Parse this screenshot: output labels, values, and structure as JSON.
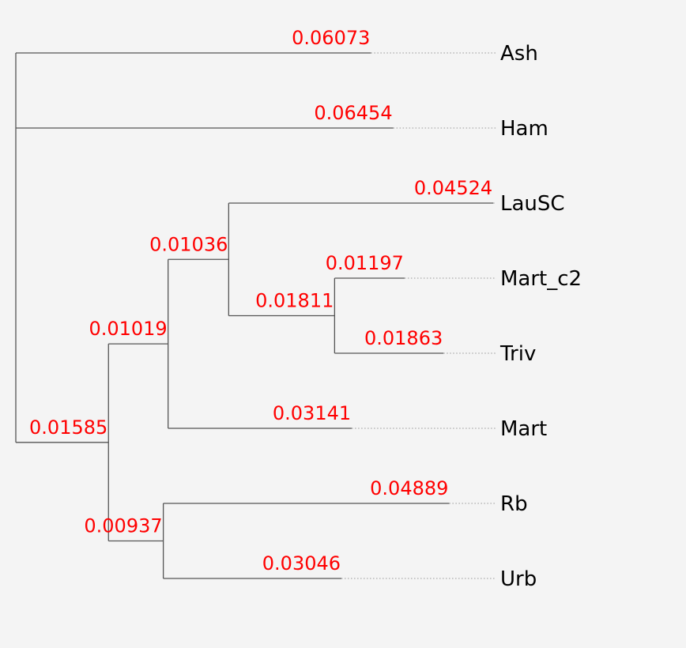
{
  "tree": {
    "name": "root",
    "children": [
      {
        "name": "Ash",
        "length": "0.06073"
      },
      {
        "name": "Ham",
        "length": "0.06454"
      },
      {
        "name": "n1",
        "length": "0.01585",
        "children": [
          {
            "name": "n2",
            "length": "0.01019",
            "children": [
              {
                "name": "n3",
                "length": "0.01036",
                "children": [
                  {
                    "name": "LauSC",
                    "length": "0.04524"
                  },
                  {
                    "name": "n4",
                    "length": "0.01811",
                    "children": [
                      {
                        "name": "Mart_c2",
                        "length": "0.01197"
                      },
                      {
                        "name": "Triv",
                        "length": "0.01863"
                      }
                    ]
                  }
                ]
              },
              {
                "name": "Mart",
                "length": "0.03141"
              }
            ]
          },
          {
            "name": "n5",
            "length": "0.00937",
            "children": [
              {
                "name": "Rb",
                "length": "0.04889"
              },
              {
                "name": "Urb",
                "length": "0.03046"
              }
            ]
          }
        ]
      }
    ]
  },
  "colors": {
    "background": "#f4f4f4",
    "branch": "#555555",
    "branch_length_label": "#ff0000",
    "leaf_label": "#000000",
    "guide_line": "#aaaaaa"
  }
}
